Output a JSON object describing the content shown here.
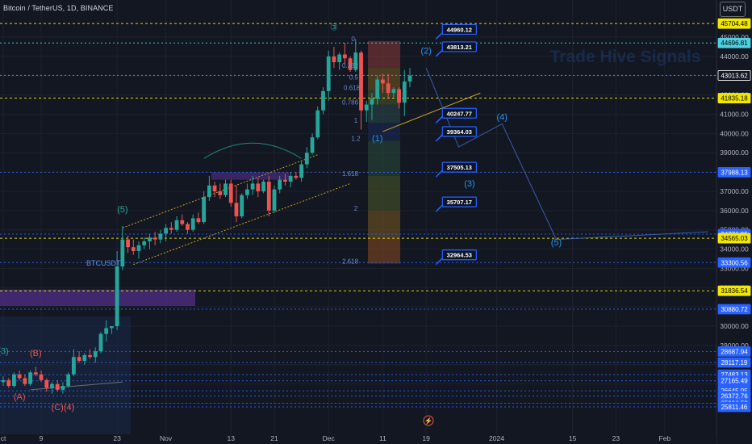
{
  "header": {
    "symbol_line": "Bitcoin / TetherUS, 1D, BINANCE",
    "currency": "USDT"
  },
  "watermark": "Trade Hive Signals",
  "symbol_label": "BTCUSDT",
  "colors": {
    "background": "#131722",
    "grid": "#1e222d",
    "up": "#26a69a",
    "down": "#ef5350",
    "yellow": "#f2e700",
    "blue_dotted": "#2962ff",
    "teal": "#4dd0e1",
    "wave": "#2196f3",
    "purple": "#4a2c7a"
  },
  "chart_data": {
    "type": "candlestick",
    "title": "Bitcoin / TetherUS, 1D, BINANCE",
    "y_axis": {
      "range": [
        25500,
        45800
      ],
      "tick_labels": [
        26000,
        27000,
        28000,
        29000,
        30000,
        31000,
        32000,
        33000,
        34000,
        35000,
        36000,
        37000,
        38000,
        39000,
        40000,
        41000,
        42000,
        43000,
        44000,
        45000
      ],
      "price_tags": [
        {
          "value": 45704.48,
          "label": "45704.48",
          "kind": "yellow"
        },
        {
          "value": 44696.81,
          "label": "44696.81",
          "kind": "teal"
        },
        {
          "value": 43013.62,
          "label": "43013.62",
          "kind": "current"
        },
        {
          "value": 41835.18,
          "label": "41835.18",
          "kind": "yellow"
        },
        {
          "value": 37988.13,
          "label": "37988.13",
          "kind": "blue"
        },
        {
          "value": 34776.95,
          "label": "34776.95",
          "kind": "blue"
        },
        {
          "value": 34565.03,
          "label": "34565.03",
          "kind": "yellow"
        },
        {
          "value": 33300.56,
          "label": "33300.56",
          "kind": "blue"
        },
        {
          "value": 31836.54,
          "label": "31836.54",
          "kind": "yellow"
        },
        {
          "value": 30880.72,
          "label": "30880.72",
          "kind": "blue"
        },
        {
          "value": 28687.94,
          "label": "28687.94",
          "kind": "blue"
        },
        {
          "value": 28117.19,
          "label": "28117.19",
          "kind": "blue"
        },
        {
          "value": 27483.13,
          "label": "27483.13",
          "kind": "blue"
        },
        {
          "value": 27165.49,
          "label": "27165.49",
          "kind": "blue"
        },
        {
          "value": 26645.95,
          "label": "26645.95",
          "kind": "blue"
        },
        {
          "value": 26372.76,
          "label": "26372.76",
          "kind": "blue"
        },
        {
          "value": 25996.52,
          "label": "25996.52",
          "kind": "blue"
        },
        {
          "value": 25811.46,
          "label": "25811.46",
          "kind": "blue"
        }
      ]
    },
    "x_axis": {
      "tick_labels": [
        {
          "day": 0,
          "label": "ct"
        },
        {
          "day": 7,
          "label": "9"
        },
        {
          "day": 21,
          "label": "23"
        },
        {
          "day": 30,
          "label": "Nov"
        },
        {
          "day": 42,
          "label": "13"
        },
        {
          "day": 50,
          "label": "21"
        },
        {
          "day": 60,
          "label": "Dec"
        },
        {
          "day": 70,
          "label": "11"
        },
        {
          "day": 78,
          "label": "19"
        },
        {
          "day": 91,
          "label": "2024"
        },
        {
          "day": 105,
          "label": "15"
        },
        {
          "day": 113,
          "label": "23"
        },
        {
          "day": 122,
          "label": "Feb"
        }
      ]
    },
    "candles": [
      [
        27100,
        27400,
        26900,
        27200
      ],
      [
        27200,
        27300,
        26800,
        26900
      ],
      [
        26900,
        27600,
        26800,
        27500
      ],
      [
        27500,
        27700,
        27200,
        27300
      ],
      [
        27300,
        27500,
        26900,
        27000
      ],
      [
        27000,
        27700,
        26900,
        27600
      ],
      [
        27600,
        27900,
        27400,
        27500
      ],
      [
        27500,
        27700,
        27100,
        27200
      ],
      [
        27200,
        27300,
        26600,
        26800
      ],
      [
        26800,
        27100,
        26500,
        27000
      ],
      [
        27000,
        27200,
        26600,
        26700
      ],
      [
        26700,
        27100,
        26500,
        26900
      ],
      [
        26900,
        27600,
        26800,
        27500
      ],
      [
        27500,
        28800,
        27400,
        28400
      ],
      [
        28400,
        28700,
        28100,
        28200
      ],
      [
        28200,
        28600,
        28000,
        28500
      ],
      [
        28500,
        28800,
        28300,
        28400
      ],
      [
        28400,
        28900,
        28100,
        28700
      ],
      [
        28700,
        29700,
        28600,
        29600
      ],
      [
        29600,
        30300,
        29200,
        29900
      ],
      [
        29900,
        30000,
        29600,
        30000
      ],
      [
        30000,
        33900,
        29800,
        33100
      ],
      [
        33100,
        35200,
        32900,
        34500
      ],
      [
        34500,
        34700,
        33800,
        34100
      ],
      [
        34100,
        34500,
        33700,
        33900
      ],
      [
        33900,
        34400,
        33500,
        34200
      ],
      [
        34200,
        34600,
        34000,
        34400
      ],
      [
        34400,
        34800,
        34000,
        34600
      ],
      [
        34600,
        34900,
        34200,
        34500
      ],
      [
        34500,
        35000,
        34300,
        34800
      ],
      [
        34800,
        35300,
        34400,
        35100
      ],
      [
        35100,
        35400,
        34800,
        35000
      ],
      [
        35000,
        35700,
        34900,
        35500
      ],
      [
        35500,
        35800,
        35200,
        35300
      ],
      [
        35300,
        35400,
        34800,
        35000
      ],
      [
        35000,
        35800,
        34900,
        35600
      ],
      [
        35600,
        35900,
        35300,
        35400
      ],
      [
        35400,
        37000,
        35300,
        36700
      ],
      [
        36700,
        37800,
        36500,
        37300
      ],
      [
        37300,
        37500,
        36700,
        37000
      ],
      [
        37000,
        37400,
        36600,
        36800
      ],
      [
        36800,
        37600,
        36700,
        37400
      ],
      [
        37400,
        37600,
        36200,
        36400
      ],
      [
        36400,
        37300,
        35400,
        35700
      ],
      [
        35700,
        36900,
        35600,
        36800
      ],
      [
        36800,
        37400,
        36600,
        37100
      ],
      [
        37100,
        37800,
        36800,
        37400
      ],
      [
        37400,
        37700,
        36700,
        37000
      ],
      [
        37000,
        37600,
        36900,
        37500
      ],
      [
        37500,
        37800,
        35700,
        36000
      ],
      [
        36000,
        37300,
        35900,
        37100
      ],
      [
        37100,
        37800,
        36900,
        37600
      ],
      [
        37600,
        37900,
        37300,
        37500
      ],
      [
        37500,
        38000,
        37200,
        37800
      ],
      [
        37800,
        38000,
        37600,
        37700
      ],
      [
        37700,
        38600,
        37500,
        38400
      ],
      [
        38400,
        39300,
        38200,
        39000
      ],
      [
        39000,
        40000,
        38900,
        39800
      ],
      [
        39800,
        41400,
        39700,
        41200
      ],
      [
        41200,
        42400,
        41000,
        42200
      ],
      [
        42200,
        44300,
        41700,
        44000
      ],
      [
        44000,
        44500,
        43400,
        43700
      ],
      [
        43700,
        44200,
        43300,
        44100
      ],
      [
        44100,
        44700,
        43600,
        43900
      ],
      [
        43900,
        44000,
        43200,
        43300
      ],
      [
        43300,
        44900,
        43200,
        44200
      ],
      [
        44200,
        44300,
        40200,
        41200
      ],
      [
        41200,
        41700,
        40600,
        41500
      ],
      [
        41500,
        42100,
        40700,
        41800
      ],
      [
        41800,
        43000,
        41500,
        42800
      ],
      [
        42800,
        43100,
        42100,
        42600
      ],
      [
        42600,
        43100,
        41800,
        42100
      ],
      [
        42100,
        42400,
        41900,
        42300
      ],
      [
        42300,
        42400,
        41300,
        41600
      ],
      [
        41600,
        43300,
        40900,
        42700
      ],
      [
        42700,
        43400,
        42400,
        43000
      ]
    ],
    "wave_labels": [
      {
        "day": 0,
        "price": 28550,
        "text": "(3)",
        "color": "#26a69a"
      },
      {
        "day": 6,
        "price": 28450,
        "text": "(B)",
        "color": "#ef5350"
      },
      {
        "day": 3,
        "price": 26200,
        "text": "(A)",
        "color": "#ef5350"
      },
      {
        "day": 11,
        "price": 25640,
        "text": "(C)(4)",
        "color": "#ef5350"
      },
      {
        "day": 22,
        "price": 35900,
        "text": "(5)",
        "color": "#26a69a"
      },
      {
        "day": 61,
        "price": 45350,
        "text": "③",
        "color": "#26a69a"
      },
      {
        "day": 78,
        "price": 44150,
        "text": "(2)",
        "color": "#2196f3"
      },
      {
        "day": 69,
        "price": 39600,
        "text": "(1)",
        "color": "#2196f3"
      },
      {
        "day": 86,
        "price": 37250,
        "text": "(3)",
        "color": "#2196f3"
      },
      {
        "day": 92,
        "price": 40700,
        "text": "(4)",
        "color": "#2196f3"
      },
      {
        "day": 102,
        "price": 34200,
        "text": "(5)",
        "color": "#2196f3"
      }
    ],
    "fib_levels": [
      {
        "text": "0",
        "price": 44800,
        "day": 64.2
      },
      {
        "text": "0.382",
        "price": 43400,
        "day": 62.5
      },
      {
        "text": "0.5",
        "price": 42800,
        "day": 63.8
      },
      {
        "text": "0.618",
        "price": 42250,
        "day": 62.8
      },
      {
        "text": "0.786",
        "price": 41500,
        "day": 62.5
      },
      {
        "text": "1",
        "price": 40550,
        "day": 64.7
      },
      {
        "text": "1.2",
        "price": 39620,
        "day": 64.2
      },
      {
        "text": "1.618",
        "price": 37800,
        "day": 62.5
      },
      {
        "text": "2",
        "price": 36000,
        "day": 64.7
      },
      {
        "text": "2.618",
        "price": 33250,
        "day": 62.5
      }
    ],
    "callouts": [
      {
        "text": "44960.12",
        "price": 45400,
        "day": 81
      },
      {
        "text": "43813.21",
        "price": 44500,
        "day": 81
      },
      {
        "text": "40247.77",
        "price": 41050,
        "day": 81
      },
      {
        "text": "39364.03",
        "price": 40100,
        "day": 81
      },
      {
        "text": "37505.13",
        "price": 38250,
        "day": 81
      },
      {
        "text": "35707.17",
        "price": 36450,
        "day": 81
      },
      {
        "text": "32964.53",
        "price": 33700,
        "day": 81
      }
    ]
  }
}
